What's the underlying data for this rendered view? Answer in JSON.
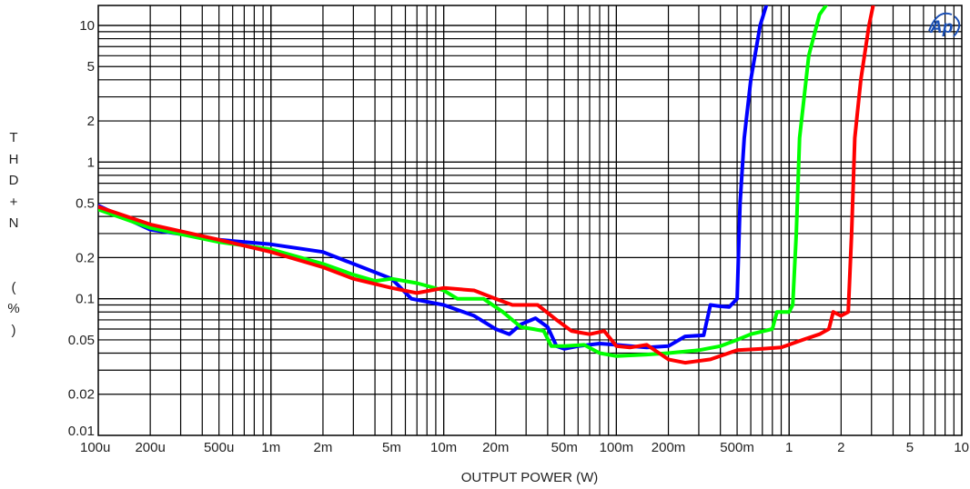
{
  "chart_data": {
    "type": "line",
    "xlabel": "OUTPUT POWER (W)",
    "ylabel": "THD+N (%)",
    "x_scale": "log",
    "y_scale": "log",
    "xlim": [
      0.0001,
      10
    ],
    "ylim": [
      0.01,
      14
    ],
    "grid": true,
    "x_ticks": [
      {
        "value": 0.0001,
        "label": "100u"
      },
      {
        "value": 0.0002,
        "label": "200u"
      },
      {
        "value": 0.0005,
        "label": "500u"
      },
      {
        "value": 0.001,
        "label": "1m"
      },
      {
        "value": 0.002,
        "label": "2m"
      },
      {
        "value": 0.005,
        "label": "5m"
      },
      {
        "value": 0.01,
        "label": "10m"
      },
      {
        "value": 0.02,
        "label": "20m"
      },
      {
        "value": 0.05,
        "label": "50m"
      },
      {
        "value": 0.1,
        "label": "100m"
      },
      {
        "value": 0.2,
        "label": "200m"
      },
      {
        "value": 0.5,
        "label": "500m"
      },
      {
        "value": 1,
        "label": "1"
      },
      {
        "value": 2,
        "label": "2"
      },
      {
        "value": 5,
        "label": "5"
      },
      {
        "value": 10,
        "label": "10"
      }
    ],
    "y_ticks": [
      {
        "value": 0.01,
        "label": "0.01"
      },
      {
        "value": 0.02,
        "label": "0.02"
      },
      {
        "value": 0.05,
        "label": "0.05"
      },
      {
        "value": 0.1,
        "label": "0.1"
      },
      {
        "value": 0.2,
        "label": "0.2"
      },
      {
        "value": 0.5,
        "label": "0.5"
      },
      {
        "value": 1,
        "label": "1"
      },
      {
        "value": 2,
        "label": "2"
      },
      {
        "value": 5,
        "label": "5"
      },
      {
        "value": 10,
        "label": "10"
      }
    ],
    "series": [
      {
        "color": "#0000ff",
        "points": [
          [
            0.0001,
            0.48
          ],
          [
            0.0002,
            0.32
          ],
          [
            0.0005,
            0.27
          ],
          [
            0.001,
            0.25
          ],
          [
            0.002,
            0.22
          ],
          [
            0.003,
            0.18
          ],
          [
            0.005,
            0.14
          ],
          [
            0.0065,
            0.1
          ],
          [
            0.01,
            0.09
          ],
          [
            0.015,
            0.075
          ],
          [
            0.02,
            0.06
          ],
          [
            0.024,
            0.055
          ],
          [
            0.028,
            0.065
          ],
          [
            0.034,
            0.072
          ],
          [
            0.04,
            0.062
          ],
          [
            0.045,
            0.045
          ],
          [
            0.05,
            0.043
          ],
          [
            0.06,
            0.045
          ],
          [
            0.08,
            0.047
          ],
          [
            0.1,
            0.046
          ],
          [
            0.12,
            0.045
          ],
          [
            0.15,
            0.044
          ],
          [
            0.2,
            0.045
          ],
          [
            0.25,
            0.053
          ],
          [
            0.32,
            0.054
          ],
          [
            0.35,
            0.09
          ],
          [
            0.4,
            0.088
          ],
          [
            0.45,
            0.087
          ],
          [
            0.5,
            0.1
          ],
          [
            0.52,
            0.5
          ],
          [
            0.55,
            1.5
          ],
          [
            0.6,
            4
          ],
          [
            0.68,
            10
          ],
          [
            0.75,
            15
          ]
        ]
      },
      {
        "color": "#00ff00",
        "points": [
          [
            0.0001,
            0.45
          ],
          [
            0.0002,
            0.33
          ],
          [
            0.0005,
            0.26
          ],
          [
            0.001,
            0.23
          ],
          [
            0.002,
            0.18
          ],
          [
            0.003,
            0.15
          ],
          [
            0.004,
            0.135
          ],
          [
            0.005,
            0.14
          ],
          [
            0.007,
            0.13
          ],
          [
            0.01,
            0.115
          ],
          [
            0.012,
            0.1
          ],
          [
            0.017,
            0.1
          ],
          [
            0.022,
            0.08
          ],
          [
            0.028,
            0.062
          ],
          [
            0.033,
            0.06
          ],
          [
            0.038,
            0.058
          ],
          [
            0.042,
            0.045
          ],
          [
            0.05,
            0.045
          ],
          [
            0.065,
            0.046
          ],
          [
            0.08,
            0.04
          ],
          [
            0.1,
            0.038
          ],
          [
            0.15,
            0.039
          ],
          [
            0.2,
            0.04
          ],
          [
            0.3,
            0.042
          ],
          [
            0.4,
            0.045
          ],
          [
            0.5,
            0.05
          ],
          [
            0.6,
            0.055
          ],
          [
            0.8,
            0.06
          ],
          [
            0.85,
            0.08
          ],
          [
            1,
            0.08
          ],
          [
            1.05,
            0.09
          ],
          [
            1.1,
            0.3
          ],
          [
            1.15,
            1.5
          ],
          [
            1.3,
            6
          ],
          [
            1.5,
            12
          ],
          [
            1.7,
            15
          ]
        ]
      },
      {
        "color": "#ff0000",
        "points": [
          [
            0.0001,
            0.47
          ],
          [
            0.0002,
            0.35
          ],
          [
            0.0005,
            0.27
          ],
          [
            0.001,
            0.22
          ],
          [
            0.002,
            0.17
          ],
          [
            0.003,
            0.14
          ],
          [
            0.005,
            0.12
          ],
          [
            0.007,
            0.11
          ],
          [
            0.01,
            0.12
          ],
          [
            0.015,
            0.115
          ],
          [
            0.02,
            0.1
          ],
          [
            0.025,
            0.09
          ],
          [
            0.035,
            0.09
          ],
          [
            0.045,
            0.07
          ],
          [
            0.055,
            0.058
          ],
          [
            0.07,
            0.055
          ],
          [
            0.085,
            0.058
          ],
          [
            0.1,
            0.045
          ],
          [
            0.12,
            0.044
          ],
          [
            0.15,
            0.046
          ],
          [
            0.2,
            0.036
          ],
          [
            0.25,
            0.034
          ],
          [
            0.35,
            0.036
          ],
          [
            0.5,
            0.042
          ],
          [
            0.7,
            0.043
          ],
          [
            0.9,
            0.044
          ],
          [
            1.2,
            0.05
          ],
          [
            1.5,
            0.055
          ],
          [
            1.7,
            0.06
          ],
          [
            1.8,
            0.08
          ],
          [
            2,
            0.075
          ],
          [
            2.2,
            0.08
          ],
          [
            2.3,
            0.3
          ],
          [
            2.4,
            1.5
          ],
          [
            2.6,
            4
          ],
          [
            2.9,
            10
          ],
          [
            3.1,
            15
          ]
        ]
      }
    ]
  }
}
